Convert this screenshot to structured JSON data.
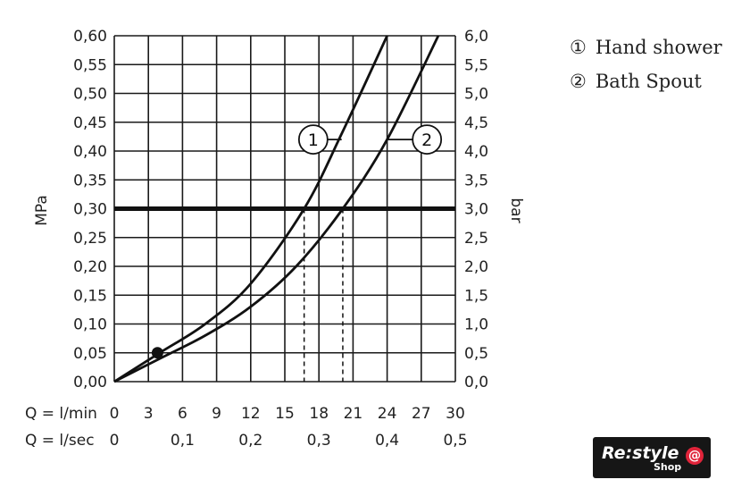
{
  "chart_data": {
    "type": "line",
    "left_axis": {
      "label": "MPa",
      "ticks": [
        "0,00",
        "0,05",
        "0,10",
        "0,15",
        "0,20",
        "0,25",
        "0,30",
        "0,35",
        "0,40",
        "0,45",
        "0,50",
        "0,55",
        "0,60"
      ],
      "range": [
        0,
        0.6
      ]
    },
    "right_axis": {
      "label": "bar",
      "ticks": [
        "0,0",
        "0,5",
        "1,0",
        "1,5",
        "2,0",
        "2,5",
        "3,0",
        "3,5",
        "4,0",
        "4,5",
        "5,0",
        "5,5",
        "6,0"
      ],
      "range": [
        0,
        6
      ]
    },
    "x_axis_lmin": {
      "label": "Q = l/min",
      "ticks": [
        "0",
        "3",
        "6",
        "9",
        "12",
        "15",
        "18",
        "21",
        "24",
        "27",
        "30"
      ],
      "range": [
        0,
        30
      ]
    },
    "x_axis_lsec": {
      "label": "Q = l/sec",
      "ticks": [
        {
          "value": 0,
          "label": "0"
        },
        {
          "value": 0.1,
          "label": "0,1"
        },
        {
          "value": 0.2,
          "label": "0,2"
        },
        {
          "value": 0.3,
          "label": "0,3"
        },
        {
          "value": 0.4,
          "label": "0,4"
        },
        {
          "value": 0.5,
          "label": "0,5"
        }
      ]
    },
    "grid": true,
    "reference_line": {
      "y": 0.3
    },
    "marker_point": {
      "x": 3.8,
      "y": 0.05
    },
    "series": [
      {
        "name": "Hand shower",
        "marker": "1",
        "operating_flow": 16.7,
        "x": [
          0,
          4,
          8,
          12,
          16.7,
          20,
          24
        ],
        "y": [
          0,
          0.05,
          0.1,
          0.17,
          0.3,
          0.43,
          0.6
        ]
      },
      {
        "name": "Bath Spout",
        "marker": "2",
        "operating_flow": 20.1,
        "x": [
          0,
          4,
          8,
          12,
          16,
          20.1,
          24,
          28.5
        ],
        "y": [
          0,
          0.04,
          0.08,
          0.13,
          0.2,
          0.3,
          0.42,
          0.6
        ]
      }
    ],
    "curve_labels": [
      {
        "series": 0,
        "x": 17.5,
        "y": 0.42,
        "line_to_x": 20.0
      },
      {
        "series": 1,
        "x": 27.5,
        "y": 0.42,
        "line_to_x": 24.0
      }
    ]
  },
  "legend": {
    "items": [
      {
        "num": "①",
        "label": "Hand shower"
      },
      {
        "num": "②",
        "label": "Bath Spout"
      }
    ]
  },
  "logo": {
    "text": "Re:style",
    "sub": "Shop",
    "mark": "@"
  }
}
